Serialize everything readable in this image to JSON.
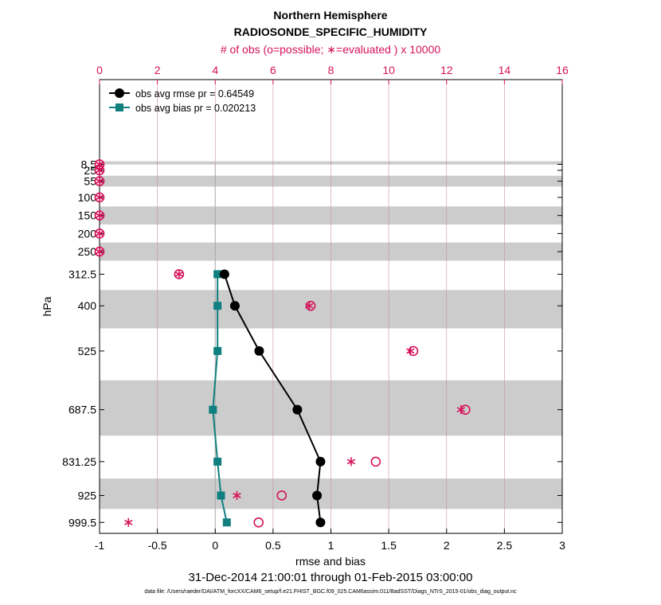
{
  "chart_data": {
    "type": "scatter",
    "title": "Northern Hemisphere",
    "subtitle": "RADIOSONDE_SPECIFIC_HUMIDITY",
    "top_axis_label": "# of obs (o=possible; ∗=evaluated ) x 10000",
    "xlabel": "rmse and bias",
    "ylabel": "hPa",
    "date_range": "31-Dec-2014 21:00:01 through 01-Feb-2015 03:00:00",
    "footnote": "data file: /Users/raeder/DAI/ATM_forcXX/CAM6_setup/f.e21.FHIST_BGC.f09_025.CAM6assim.011/BadSST/Diags_NTrS_2015-01/obs_diag_output.nc",
    "xlim": [
      -1,
      3
    ],
    "x_ticks": [
      "-1",
      "-0.5",
      "0",
      "0.5",
      "1",
      "1.5",
      "2",
      "2.5",
      "3"
    ],
    "top_xlim": [
      0,
      16
    ],
    "top_ticks": [
      "0",
      "2",
      "4",
      "6",
      "8",
      "10",
      "12",
      "14",
      "16"
    ],
    "levels": [
      8.5,
      25,
      55,
      100,
      150,
      200,
      250,
      312.5,
      400,
      525,
      687.5,
      831.25,
      925,
      999.5
    ],
    "level_labels": [
      "8.5",
      "25",
      "55",
      "100",
      "150",
      "200",
      "250",
      "312.5",
      "400",
      "525",
      "687.5",
      "831.25",
      "925",
      "999.5"
    ],
    "shaded_bands": [
      [
        0,
        9
      ],
      [
        40,
        70
      ],
      [
        125,
        175
      ],
      [
        225,
        275
      ],
      [
        356.25,
        462.5
      ],
      [
        606.25,
        759.375
      ],
      [
        878.125,
        962.25
      ]
    ],
    "series": [
      {
        "name": "obs avg rmse",
        "legend": "obs avg rmse pr = 0.64549",
        "color": "#000000",
        "levels": [
          312.5,
          400,
          525,
          687.5,
          831.25,
          925,
          999.5
        ],
        "values": [
          0.08,
          0.17,
          0.38,
          0.71,
          0.91,
          0.88,
          0.91
        ]
      },
      {
        "name": "obs avg bias",
        "legend": "obs avg bias pr = 0.020213",
        "color": "#0f7f7f",
        "levels": [
          312.5,
          400,
          525,
          687.5,
          831.25,
          925,
          999.5
        ],
        "values": [
          0.02,
          0.02,
          0.02,
          -0.02,
          0.02,
          0.05,
          0.1
        ]
      }
    ],
    "obs_counts_x10000": {
      "levels": [
        8.5,
        25,
        55,
        100,
        150,
        200,
        250,
        312.5,
        400,
        525,
        687.5,
        831.25,
        925,
        999.5
      ],
      "possible": [
        0,
        0,
        0,
        0,
        0,
        0,
        0,
        2.75,
        7.3,
        10.85,
        12.65,
        9.55,
        6.3,
        5.5
      ],
      "evaluated": [
        0,
        0,
        0,
        0,
        0,
        0,
        0,
        2.75,
        7.25,
        10.75,
        12.5,
        8.7,
        4.75,
        1.0
      ]
    },
    "colors": {
      "obs": "#d6115a",
      "rmse": "#000000",
      "bias": "#0f7f7f",
      "band": "#cccccc",
      "grid": "#c890a8"
    }
  }
}
